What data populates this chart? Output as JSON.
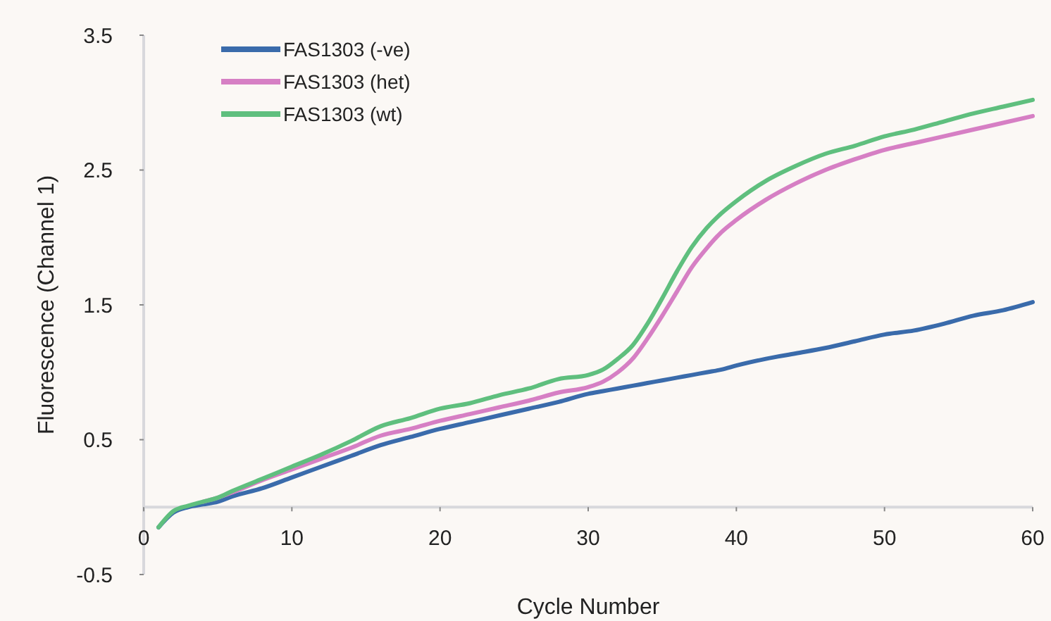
{
  "chart_data": {
    "type": "line",
    "xlabel": "Cycle Number",
    "ylabel": "Fluorescence (Channel 1)",
    "x": [
      1,
      2,
      3,
      4,
      5,
      6,
      8,
      10,
      12,
      14,
      16,
      18,
      20,
      22,
      24,
      26,
      28,
      30,
      31,
      32,
      33,
      34,
      35,
      36,
      37,
      38,
      39,
      40,
      42,
      44,
      46,
      48,
      50,
      52,
      54,
      56,
      58,
      60
    ],
    "series": [
      {
        "name": "FAS1303 (-ve)",
        "color": "#3a6bab",
        "values": [
          -0.15,
          -0.04,
          0.0,
          0.02,
          0.04,
          0.08,
          0.14,
          0.22,
          0.3,
          0.38,
          0.46,
          0.52,
          0.58,
          0.63,
          0.68,
          0.73,
          0.78,
          0.84,
          0.86,
          0.88,
          0.9,
          0.92,
          0.94,
          0.96,
          0.98,
          1.0,
          1.02,
          1.05,
          1.1,
          1.14,
          1.18,
          1.23,
          1.28,
          1.31,
          1.36,
          1.42,
          1.46,
          1.52
        ]
      },
      {
        "name": "FAS1303 (het)",
        "color": "#d67fc4",
        "values": [
          null,
          null,
          null,
          0.04,
          0.07,
          0.11,
          0.2,
          0.28,
          0.36,
          0.44,
          0.53,
          0.58,
          0.64,
          0.69,
          0.74,
          0.79,
          0.85,
          0.89,
          0.93,
          1.0,
          1.1,
          1.25,
          1.42,
          1.6,
          1.78,
          1.92,
          2.04,
          2.13,
          2.28,
          2.4,
          2.5,
          2.58,
          2.65,
          2.7,
          2.75,
          2.8,
          2.85,
          2.9
        ]
      },
      {
        "name": "FAS1303 (wt)",
        "color": "#5fbf7e",
        "values": [
          -0.15,
          -0.03,
          0.01,
          0.04,
          0.07,
          0.12,
          0.21,
          0.3,
          0.39,
          0.49,
          0.6,
          0.66,
          0.73,
          0.77,
          0.83,
          0.88,
          0.95,
          0.98,
          1.02,
          1.1,
          1.2,
          1.36,
          1.55,
          1.75,
          1.93,
          2.07,
          2.18,
          2.27,
          2.42,
          2.53,
          2.62,
          2.68,
          2.75,
          2.8,
          2.86,
          2.92,
          2.97,
          3.02
        ]
      }
    ],
    "xlim": [
      0,
      60
    ],
    "xticks": [
      0,
      10,
      20,
      30,
      40,
      50,
      60
    ],
    "ylim": [
      -0.5,
      3.5
    ],
    "yticks": [
      -0.5,
      0.5,
      1.5,
      2.5,
      3.5
    ],
    "legend": "top left",
    "grid": false,
    "marker": "none",
    "line_style": "solid"
  }
}
